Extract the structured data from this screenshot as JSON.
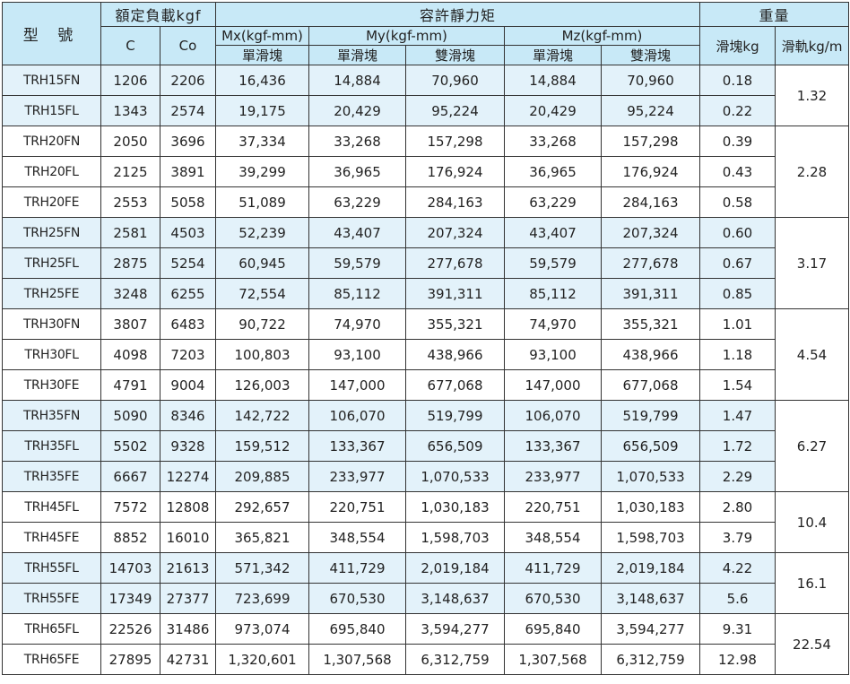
{
  "header": {
    "model": "型 號",
    "rated_load": "額定負載kgf",
    "moment": "容許靜力矩",
    "weight": "重量",
    "c": "C",
    "co": "Co",
    "mx": "Mx(kgf-mm)",
    "my": "My(kgf-mm)",
    "mz": "Mz(kgf-mm)",
    "block_kg": "滑塊kg",
    "rail_kgm": "滑軌kg/m",
    "single": "單滑塊",
    "double": "雙滑塊"
  },
  "rows": [
    {
      "model": "TRH15FN",
      "c": "1206",
      "co": "2206",
      "mx": "16,436",
      "my1": "14,884",
      "my2": "70,960",
      "mz1": "14,884",
      "mz2": "70,960",
      "block": "0.18"
    },
    {
      "model": "TRH15FL",
      "c": "1343",
      "co": "2574",
      "mx": "19,175",
      "my1": "20,429",
      "my2": "95,224",
      "mz1": "20,429",
      "mz2": "95,224",
      "block": "0.22"
    },
    {
      "model": "TRH20FN",
      "c": "2050",
      "co": "3696",
      "mx": "37,334",
      "my1": "33,268",
      "my2": "157,298",
      "mz1": "33,268",
      "mz2": "157,298",
      "block": "0.39"
    },
    {
      "model": "TRH20FL",
      "c": "2125",
      "co": "3891",
      "mx": "39,299",
      "my1": "36,965",
      "my2": "176,924",
      "mz1": "36,965",
      "mz2": "176,924",
      "block": "0.43"
    },
    {
      "model": "TRH20FE",
      "c": "2553",
      "co": "5058",
      "mx": "51,089",
      "my1": "63,229",
      "my2": "284,163",
      "mz1": "63,229",
      "mz2": "284,163",
      "block": "0.58"
    },
    {
      "model": "TRH25FN",
      "c": "2581",
      "co": "4503",
      "mx": "52,239",
      "my1": "43,407",
      "my2": "207,324",
      "mz1": "43,407",
      "mz2": "207,324",
      "block": "0.60"
    },
    {
      "model": "TRH25FL",
      "c": "2875",
      "co": "5254",
      "mx": "60,945",
      "my1": "59,579",
      "my2": "277,678",
      "mz1": "59,579",
      "mz2": "277,678",
      "block": "0.67"
    },
    {
      "model": "TRH25FE",
      "c": "3248",
      "co": "6255",
      "mx": "72,554",
      "my1": "85,112",
      "my2": "391,311",
      "mz1": "85,112",
      "mz2": "391,311",
      "block": "0.85"
    },
    {
      "model": "TRH30FN",
      "c": "3807",
      "co": "6483",
      "mx": "90,722",
      "my1": "74,970",
      "my2": "355,321",
      "mz1": "74,970",
      "mz2": "355,321",
      "block": "1.01"
    },
    {
      "model": "TRH30FL",
      "c": "4098",
      "co": "7203",
      "mx": "100,803",
      "my1": "93,100",
      "my2": "438,966",
      "mz1": "93,100",
      "mz2": "438,966",
      "block": "1.18"
    },
    {
      "model": "TRH30FE",
      "c": "4791",
      "co": "9004",
      "mx": "126,003",
      "my1": "147,000",
      "my2": "677,068",
      "mz1": "147,000",
      "mz2": "677,068",
      "block": "1.54"
    },
    {
      "model": "TRH35FN",
      "c": "5090",
      "co": "8346",
      "mx": "142,722",
      "my1": "106,070",
      "my2": "519,799",
      "mz1": "106,070",
      "mz2": "519,799",
      "block": "1.47"
    },
    {
      "model": "TRH35FL",
      "c": "5502",
      "co": "9328",
      "mx": "159,512",
      "my1": "133,367",
      "my2": "656,509",
      "mz1": "133,367",
      "mz2": "656,509",
      "block": "1.72"
    },
    {
      "model": "TRH35FE",
      "c": "6667",
      "co": "12274",
      "mx": "209,885",
      "my1": "233,977",
      "my2": "1,070,533",
      "mz1": "233,977",
      "mz2": "1,070,533",
      "block": "2.29"
    },
    {
      "model": "TRH45FL",
      "c": "7572",
      "co": "12808",
      "mx": "292,657",
      "my1": "220,751",
      "my2": "1,030,183",
      "mz1": "220,751",
      "mz2": "1,030,183",
      "block": "2.80"
    },
    {
      "model": "TRH45FE",
      "c": "8852",
      "co": "16010",
      "mx": "365,821",
      "my1": "348,554",
      "my2": "1,598,703",
      "mz1": "348,554",
      "mz2": "1,598,703",
      "block": "3.79"
    },
    {
      "model": "TRH55FL",
      "c": "14703",
      "co": "21613",
      "mx": "571,342",
      "my1": "411,729",
      "my2": "2,019,184",
      "mz1": "411,729",
      "mz2": "2,019,184",
      "block": "4.22"
    },
    {
      "model": "TRH55FE",
      "c": "17349",
      "co": "27377",
      "mx": "723,699",
      "my1": "670,530",
      "my2": "3,148,637",
      "mz1": "670,530",
      "mz2": "3,148,637",
      "block": "5.6"
    },
    {
      "model": "TRH65FL",
      "c": "22526",
      "co": "31486",
      "mx": "973,074",
      "my1": "695,840",
      "my2": "3,594,277",
      "mz1": "695,840",
      "mz2": "3,594,277",
      "block": "9.31"
    },
    {
      "model": "TRH65FE",
      "c": "27895",
      "co": "42731",
      "mx": "1,320,601",
      "my1": "1,307,568",
      "my2": "6,312,759",
      "mz1": "1,307,568",
      "mz2": "6,312,759",
      "block": "12.98"
    }
  ],
  "rail_groups": [
    {
      "value": "1.32",
      "rows": 2,
      "tone": "blue"
    },
    {
      "value": "2.28",
      "rows": 3,
      "tone": "white"
    },
    {
      "value": "3.17",
      "rows": 3,
      "tone": "blue"
    },
    {
      "value": "4.54",
      "rows": 3,
      "tone": "white"
    },
    {
      "value": "6.27",
      "rows": 3,
      "tone": "blue"
    },
    {
      "value": "10.4",
      "rows": 2,
      "tone": "white"
    },
    {
      "value": "16.1",
      "rows": 2,
      "tone": "blue"
    },
    {
      "value": "22.54",
      "rows": 2,
      "tone": "white"
    }
  ]
}
